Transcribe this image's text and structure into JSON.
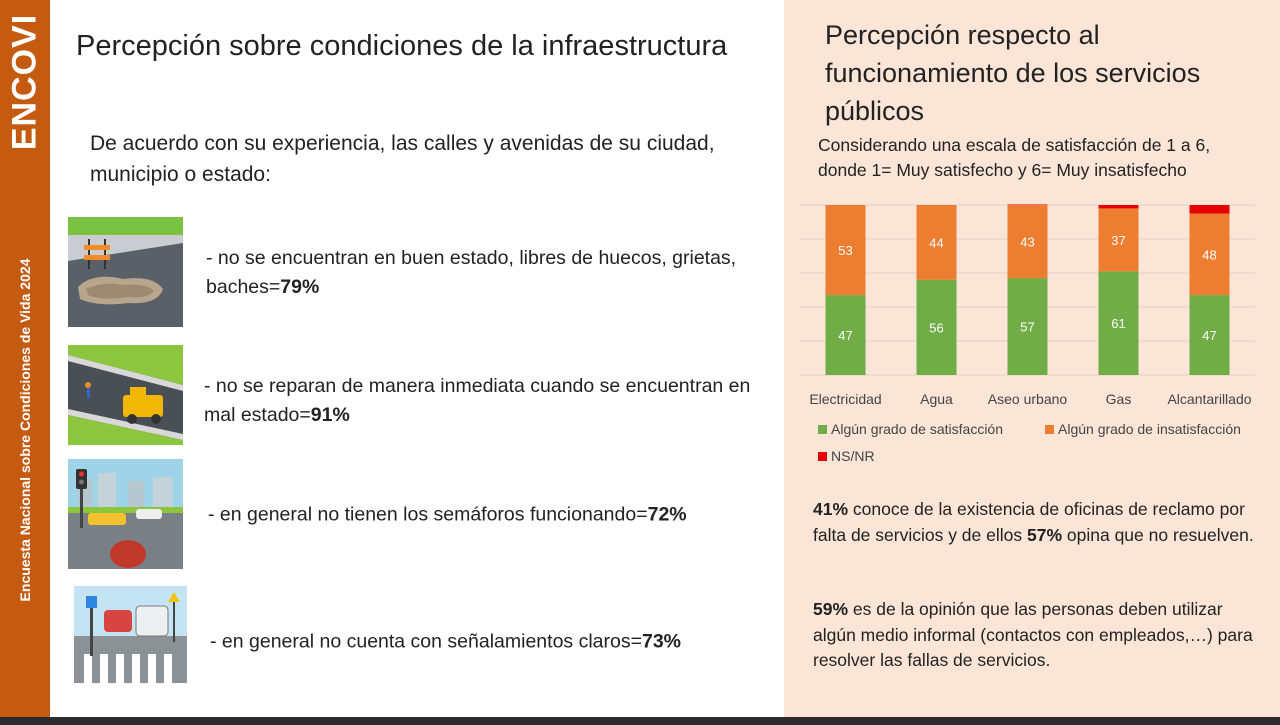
{
  "sidebar": {
    "logo": "ENCOVI",
    "title": "Encuesta Nacional sobre Condiciones de Vida 2024"
  },
  "left": {
    "title": "Percepción sobre condiciones de la infraestructura",
    "question": "De acuerdo con su experiencia, las calles y avenidas de su ciudad, municipio o estado:",
    "items": [
      {
        "text": "- no se encuentran en buen estado, libres de huecos, grietas, baches=",
        "value": "79%",
        "image": "pothole-illustration"
      },
      {
        "text": "- no se reparan de manera inmediata cuando se encuentran en mal estado=",
        "value": "91%",
        "image": "road-repair-illustration"
      },
      {
        "text": "- en general no tienen los semáforos funcionando=",
        "value": "72%",
        "image": "traffic-light-illustration"
      },
      {
        "text": "- en general no cuenta con señalamientos claros=",
        "value": "73%",
        "image": "road-signs-illustration"
      }
    ]
  },
  "right": {
    "title": "Percepción respecto al funcionamiento de los servicios públicos",
    "scale_note": "Considerando una escala de satisfacción de 1 a 6, donde 1= Muy satisfecho y 6= Muy insatisfecho",
    "fact1": {
      "value": "41%",
      "text1": " conoce de la existencia de oficinas de reclamo por falta de servicios y de ellos ",
      "value2": "57%",
      "text2": " opina que no resuelven."
    },
    "fact2": {
      "value": "59%",
      "text": " es de la opinión que las personas deben utilizar algún medio informal (contactos con empleados,…) para resolver las fallas de servicios."
    }
  },
  "chart_data": {
    "type": "bar",
    "stacked": true,
    "categories": [
      "Electricidad",
      "Agua",
      "Aseo urbano",
      "Gas",
      "Alcantarillado"
    ],
    "series": [
      {
        "name": "Algún grado de satisfacción",
        "values": [
          47,
          56,
          57,
          61,
          47
        ],
        "color": "#70ad47"
      },
      {
        "name": "Algún grado de insatisfacción",
        "values": [
          53,
          44,
          43,
          37,
          48
        ],
        "color": "#ed7d31"
      },
      {
        "name": "NS/NR",
        "values": [
          0,
          0,
          0.3,
          2,
          5
        ],
        "color": "#e60000"
      }
    ],
    "ylim": [
      0,
      100
    ],
    "grid": true,
    "legend_position": "bottom"
  }
}
